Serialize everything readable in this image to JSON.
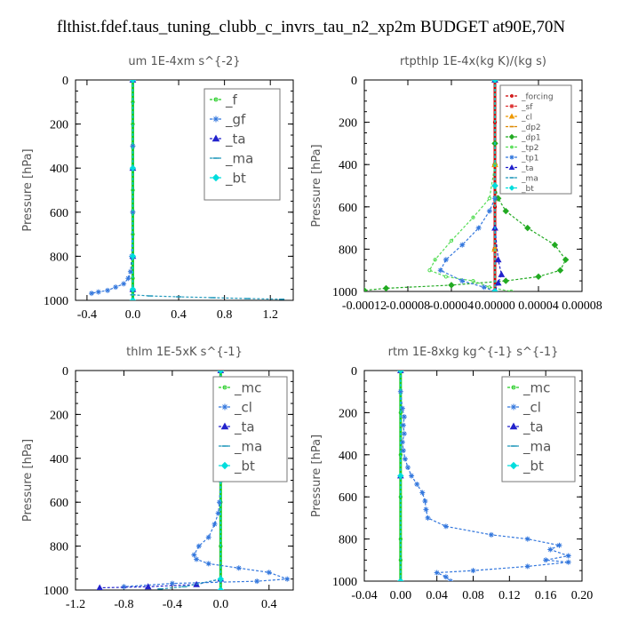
{
  "title": "flthist.fdef.taus_tuning_clubb_c_invrs_tau_n2_xp2m  BUDGET at90E,70N",
  "chart_data": [
    {
      "type": "line",
      "title": "um   1E-4xm  s^{-2}",
      "ylabel": "Pressure [hPa]",
      "xlim": [
        -0.5,
        1.4
      ],
      "ylim": [
        1000,
        0
      ],
      "xticks": [
        -0.4,
        0.0,
        0.4,
        0.8,
        1.2
      ],
      "xtick_labels": [
        "-0.4",
        "0.0",
        "0.4",
        "0.8",
        "1.2"
      ],
      "yticks": [
        0,
        200,
        400,
        600,
        800,
        1000
      ],
      "ytick_labels": [
        "0",
        "200",
        "400",
        "600",
        "800",
        "1000"
      ],
      "legend_position": "top-right",
      "series": [
        {
          "name": "_f",
          "color": "#22cc22",
          "marker": "circle",
          "x": [
            0,
            0,
            0,
            0,
            0,
            0,
            0,
            0,
            0,
            0,
            0,
            0
          ],
          "y": [
            0,
            100,
            200,
            300,
            400,
            500,
            600,
            700,
            800,
            900,
            960,
            1000
          ]
        },
        {
          "name": "_gf",
          "color": "#3377dd",
          "marker": "star",
          "x": [
            0,
            0,
            0,
            -0.01,
            -0.02,
            -0.04,
            -0.08,
            -0.15,
            -0.22,
            -0.3,
            -0.36
          ],
          "y": [
            0,
            300,
            600,
            800,
            870,
            900,
            925,
            940,
            955,
            962,
            968
          ]
        },
        {
          "name": "_ta",
          "color": "#2222cc",
          "marker": "triangle",
          "x": [
            0,
            0,
            0,
            0,
            0
          ],
          "y": [
            0,
            400,
            800,
            950,
            1000
          ]
        },
        {
          "name": "_ma",
          "color": "#2299bb",
          "marker": "dash",
          "x": [
            0,
            0.15,
            0.4,
            0.7,
            1.0,
            1.3
          ],
          "y": [
            975,
            980,
            984,
            988,
            992,
            995
          ]
        },
        {
          "name": "_bt",
          "color": "#00dddd",
          "marker": "diamond",
          "x": [
            0,
            0,
            0,
            0,
            0
          ],
          "y": [
            0,
            400,
            800,
            950,
            1000
          ]
        }
      ]
    },
    {
      "type": "line",
      "title": "rtpthlp   1E-4x(kg K)/(kg s)",
      "ylabel": "Pressure [hPa]",
      "xlim": [
        -0.00012,
        8e-05
      ],
      "ylim": [
        1000,
        0
      ],
      "xticks": [
        -0.00012,
        -8e-05,
        -4e-05,
        0.0,
        4e-05,
        8e-05
      ],
      "xtick_labels": [
        "-0.00012",
        "-0.00008",
        "-0.00004",
        "0.00000",
        "0.00004",
        "0.00008"
      ],
      "yticks": [
        0,
        200,
        400,
        600,
        800,
        1000
      ],
      "ytick_labels": [
        "0",
        "200",
        "400",
        "600",
        "800",
        "1000"
      ],
      "legend_position": "top-right",
      "series": [
        {
          "name": "_forcing",
          "color": "#cc0000",
          "marker": "circle",
          "x": [
            0,
            0,
            0,
            0,
            0,
            0
          ],
          "y": [
            0,
            200,
            400,
            600,
            800,
            1000
          ]
        },
        {
          "name": "_sf",
          "color": "#dd3333",
          "marker": "star",
          "x": [
            0,
            0,
            0,
            0
          ],
          "y": [
            0,
            400,
            800,
            1000
          ]
        },
        {
          "name": "_cl",
          "color": "#ee9900",
          "marker": "triangle",
          "x": [
            0,
            0,
            0,
            0
          ],
          "y": [
            0,
            400,
            800,
            1000
          ]
        },
        {
          "name": "_dp2",
          "color": "#dd8800",
          "marker": "dash",
          "x": [
            0,
            0,
            0,
            0
          ],
          "y": [
            0,
            400,
            800,
            1000
          ]
        },
        {
          "name": "_dp1",
          "color": "#22aa22",
          "marker": "diamond",
          "x": [
            0,
            0,
            0,
            3e-06,
            1e-05,
            3e-05,
            5.5e-05,
            6.5e-05,
            6e-05,
            4e-05,
            1e-05,
            -4e-05,
            -0.0001,
            -0.00012
          ],
          "y": [
            0,
            300,
            500,
            560,
            620,
            700,
            780,
            850,
            900,
            930,
            950,
            970,
            985,
            995
          ]
        },
        {
          "name": "_tp2",
          "color": "#55dd55",
          "marker": "circle",
          "x": [
            0,
            0,
            -5e-06,
            -2e-05,
            -4e-05,
            -5.5e-05,
            -6e-05,
            -4.5e-05,
            -2e-05,
            -5e-06,
            1.5e-05
          ],
          "y": [
            0,
            400,
            560,
            650,
            760,
            850,
            900,
            930,
            950,
            980,
            1000
          ]
        },
        {
          "name": "_tp1",
          "color": "#3377dd",
          "marker": "star",
          "x": [
            0,
            -5e-06,
            -1.5e-05,
            -3e-05,
            -4.5e-05,
            -5e-05,
            -3e-05,
            -1e-05,
            0
          ],
          "y": [
            560,
            620,
            700,
            780,
            850,
            900,
            950,
            980,
            1000
          ]
        },
        {
          "name": "_ta",
          "color": "#2222cc",
          "marker": "triangle",
          "x": [
            0,
            0,
            3e-06,
            6e-06,
            3e-06,
            0
          ],
          "y": [
            0,
            700,
            850,
            920,
            960,
            1000
          ]
        },
        {
          "name": "_ma",
          "color": "#2299bb",
          "marker": "dash",
          "x": [
            0,
            0,
            0
          ],
          "y": [
            0,
            500,
            1000
          ]
        },
        {
          "name": "_bt",
          "color": "#00dddd",
          "marker": "diamond",
          "x": [
            0,
            0,
            0
          ],
          "y": [
            0,
            500,
            1000
          ]
        }
      ]
    },
    {
      "type": "line",
      "title": "thlm   1E-5xK  s^{-1}",
      "ylabel": "Pressure [hPa]",
      "xlim": [
        -1.2,
        0.6
      ],
      "ylim": [
        1000,
        0
      ],
      "xticks": [
        -1.2,
        -0.8,
        -0.4,
        0.0,
        0.4
      ],
      "xtick_labels": [
        "-1.2",
        "-0.8",
        "-0.4",
        "0.0",
        "0.4"
      ],
      "yticks": [
        0,
        200,
        400,
        600,
        800,
        1000
      ],
      "ytick_labels": [
        "0",
        "200",
        "400",
        "600",
        "800",
        "1000"
      ],
      "legend_position": "top-right",
      "series": [
        {
          "name": "_mc",
          "color": "#22cc22",
          "marker": "circle",
          "x": [
            0,
            0,
            0,
            0,
            0,
            0,
            0
          ],
          "y": [
            0,
            200,
            400,
            600,
            800,
            950,
            1000
          ]
        },
        {
          "name": "_cl",
          "color": "#3377dd",
          "marker": "star",
          "x": [
            0,
            0,
            -0.01,
            -0.02,
            -0.05,
            -0.1,
            -0.18,
            -0.22,
            -0.2,
            -0.1,
            0.15,
            0.4,
            0.55,
            0.3,
            -0.4,
            -0.8
          ],
          "y": [
            0,
            500,
            600,
            650,
            700,
            760,
            800,
            840,
            860,
            880,
            900,
            920,
            950,
            960,
            970,
            985
          ]
        },
        {
          "name": "_ta",
          "color": "#2222cc",
          "marker": "triangle",
          "x": [
            0,
            0,
            -0.2,
            -0.6,
            -1.0
          ],
          "y": [
            0,
            950,
            975,
            985,
            990
          ]
        },
        {
          "name": "_ma",
          "color": "#2299bb",
          "marker": "dash",
          "x": [
            0,
            0,
            -0.3,
            -0.5
          ],
          "y": [
            0,
            950,
            985,
            995
          ]
        },
        {
          "name": "_bt",
          "color": "#00dddd",
          "marker": "diamond",
          "x": [
            0,
            0,
            0,
            0
          ],
          "y": [
            0,
            500,
            950,
            1000
          ]
        }
      ]
    },
    {
      "type": "line",
      "title": "rtm   1E-8xkg  kg^{-1}  s^{-1}",
      "ylabel": "Pressure [hPa]",
      "xlim": [
        -0.04,
        0.2
      ],
      "ylim": [
        1000,
        0
      ],
      "xticks": [
        -0.04,
        0.0,
        0.04,
        0.08,
        0.12,
        0.16,
        0.2
      ],
      "xtick_labels": [
        "-0.04",
        "0.00",
        "0.04",
        "0.08",
        "0.12",
        "0.16",
        "0.20"
      ],
      "yticks": [
        0,
        200,
        400,
        600,
        800,
        1000
      ],
      "ytick_labels": [
        "0",
        "200",
        "400",
        "600",
        "800",
        "1000"
      ],
      "legend_position": "top-right",
      "series": [
        {
          "name": "_mc",
          "color": "#22cc22",
          "marker": "circle",
          "x": [
            0,
            0,
            0,
            0,
            0,
            0,
            0
          ],
          "y": [
            0,
            200,
            400,
            600,
            800,
            900,
            1000
          ]
        },
        {
          "name": "_cl",
          "color": "#3377dd",
          "marker": "star",
          "x": [
            0,
            0,
            0.002,
            0.004,
            0.003,
            0.004,
            0.002,
            0.003,
            0.005,
            0.008,
            0.012,
            0.018,
            0.024,
            0.027,
            0.028,
            0.03,
            0.05,
            0.1,
            0.14,
            0.175,
            0.165,
            0.185,
            0.16,
            0.185,
            0.14,
            0.08,
            0.04,
            0.05,
            0.055
          ],
          "y": [
            0,
            100,
            180,
            220,
            260,
            300,
            340,
            380,
            420,
            460,
            500,
            540,
            580,
            620,
            660,
            700,
            740,
            780,
            800,
            830,
            850,
            880,
            900,
            910,
            930,
            950,
            960,
            980,
            1000
          ]
        },
        {
          "name": "_ta",
          "color": "#2222cc",
          "marker": "triangle",
          "x": [
            0,
            0,
            0
          ],
          "y": [
            0,
            500,
            1000
          ]
        },
        {
          "name": "_ma",
          "color": "#2299bb",
          "marker": "dash",
          "x": [
            0,
            0,
            0
          ],
          "y": [
            0,
            500,
            1000
          ]
        },
        {
          "name": "_bt",
          "color": "#00dddd",
          "marker": "diamond",
          "x": [
            0,
            0,
            0
          ],
          "y": [
            0,
            500,
            1000
          ]
        }
      ]
    }
  ]
}
